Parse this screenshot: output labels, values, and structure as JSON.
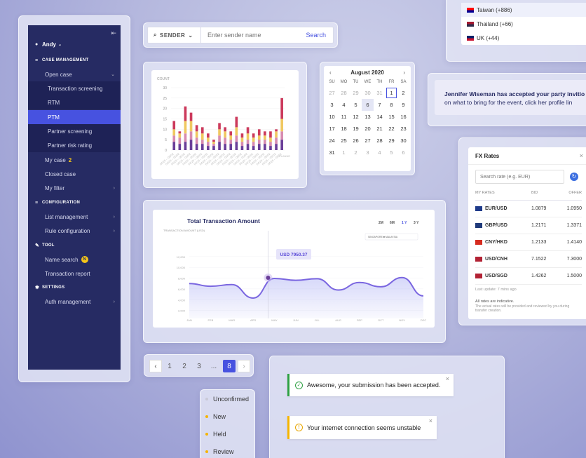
{
  "sidebar": {
    "user": "Andy",
    "sections": {
      "case": "CASE MANAGEMENT",
      "config": "CONFIGURATION",
      "tool": "TOOL",
      "settings": "SETTINGS"
    },
    "items": {
      "open_case": "Open case",
      "tx_screening": "Transaction screening",
      "rtm": "RTM",
      "ptm": "PTM",
      "partner_screening": "Partner screening",
      "partner_risk": "Partner risk rating",
      "my_case": "My case",
      "my_case_badge": "2",
      "closed_case": "Closed case",
      "my_filter": "My filter",
      "list_mgmt": "List management",
      "rule_config": "Rule configuration",
      "name_search": "Name search",
      "name_search_badge": "N",
      "tx_report": "Transaction report",
      "auth_mgmt": "Auth management"
    }
  },
  "search": {
    "scope": "SENDER",
    "placeholder": "Enter sender name",
    "button": "Search"
  },
  "bar_chart": {
    "ylabel": "COUNT",
    "yticks": [
      "30",
      "25",
      "20",
      "15",
      "10",
      "5",
      "0"
    ],
    "legend": "PLANNE"
  },
  "chart_data": [
    {
      "type": "bar",
      "title": "",
      "ylabel": "COUNT",
      "ylim": [
        0,
        30
      ],
      "categories": [
        "b1",
        "b2",
        "b3",
        "b4",
        "b5",
        "b6",
        "b7",
        "b8",
        "b9",
        "b10",
        "b11",
        "b12",
        "b13",
        "b14",
        "b15",
        "b16",
        "b17",
        "b18",
        "b19",
        "b20"
      ],
      "series": [
        {
          "values": [
            4,
            3,
            4,
            5,
            3,
            3,
            2,
            2,
            4,
            3,
            3,
            4,
            2,
            3,
            2,
            3,
            3,
            2,
            3,
            5
          ]
        },
        {
          "values": [
            3,
            3,
            4,
            4,
            3,
            2,
            2,
            1,
            3,
            3,
            2,
            3,
            2,
            2,
            2,
            2,
            2,
            2,
            3,
            4
          ]
        },
        {
          "values": [
            3,
            2,
            6,
            5,
            3,
            3,
            2,
            1,
            3,
            3,
            2,
            4,
            2,
            3,
            2,
            2,
            2,
            2,
            3,
            6
          ]
        },
        {
          "values": [
            4,
            1,
            7,
            4,
            3,
            3,
            2,
            1,
            3,
            2,
            2,
            5,
            2,
            3,
            2,
            3,
            2,
            3,
            1,
            10
          ]
        }
      ],
      "colors": [
        "#6a3e98",
        "#d88bb0",
        "#f0c860",
        "#cc3a5c"
      ]
    },
    {
      "type": "area",
      "title": "Total Transaction Amount",
      "ylabel": "TRANSACTION AMOUNT (USD)",
      "yticks": [
        "12,000",
        "10,000",
        "8,000",
        "6,000",
        "4,000",
        "2,000"
      ],
      "categories": [
        "JAN",
        "FEB",
        "MAR",
        "APR",
        "MAY",
        "JUN",
        "JUL",
        "AUG",
        "SEP",
        "OCT",
        "NOV",
        "DEC"
      ],
      "values": [
        7000,
        6500,
        6800,
        4300,
        7950,
        7600,
        7900,
        5800,
        7200,
        6400,
        8100,
        4700
      ],
      "tooltip": "USD 7950.37",
      "ranges": [
        "2M",
        "6M",
        "1 Y",
        "3 Y"
      ],
      "filter": "SINGAPORE ■ MALAYSIA"
    }
  ],
  "calendar": {
    "month": "August 2020",
    "days": [
      "SU",
      "MO",
      "TU",
      "WE",
      "TH",
      "FR",
      "SA"
    ],
    "weeks": [
      [
        "27",
        "28",
        "29",
        "30",
        "31",
        "1",
        "2"
      ],
      [
        "3",
        "4",
        "5",
        "6",
        "7",
        "8",
        "9"
      ],
      [
        "10",
        "11",
        "12",
        "13",
        "14",
        "15",
        "16"
      ],
      [
        "17",
        "18",
        "19",
        "20",
        "21",
        "22",
        "23"
      ],
      [
        "24",
        "25",
        "26",
        "27",
        "28",
        "29",
        "30"
      ],
      [
        "31",
        "1",
        "2",
        "3",
        "4",
        "5",
        "6"
      ]
    ]
  },
  "phone": {
    "items": [
      "Taiwan (+886)",
      "Thailand (+66)",
      "UK (+44)"
    ]
  },
  "notification": {
    "line1": "Jennifer Wiseman has accepted your party invitio",
    "line2": "on what to bring for the event, click her profile lin"
  },
  "fx": {
    "title": "FX Rates",
    "placeholder": "Search rate (e.g. EUR)",
    "headers": [
      "MY RATES",
      "BID",
      "OFFER"
    ],
    "rows": [
      {
        "pair": "EUR/USD",
        "bid": "1.0879",
        "offer": "1.0950",
        "c": "#1e3a8a"
      },
      {
        "pair": "GBP/USD",
        "bid": "1.2171",
        "offer": "1.3371",
        "c": "#1f3a7a"
      },
      {
        "pair": "CNY/HKD",
        "bid": "1.2133",
        "offer": "1.4140",
        "c": "#d62b1f"
      },
      {
        "pair": "USD/CNH",
        "bid": "7.1522",
        "offer": "7.3000",
        "c": "#b22234"
      },
      {
        "pair": "USD/SGD",
        "bid": "1.4262",
        "offer": "1.5000",
        "c": "#b22234"
      }
    ],
    "updated": "Last update: 7 mins ago",
    "note1": "All rates are indicative.",
    "note2": "The actual rates will be provided and reviewed by you during transfer creation."
  },
  "pagination": {
    "pages": [
      "1",
      "2",
      "3",
      "...",
      "8"
    ]
  },
  "statuses": [
    {
      "label": "Unconfirmed",
      "color": "#c9c9d6"
    },
    {
      "label": "New",
      "color": "#f5b400"
    },
    {
      "label": "Held",
      "color": "#f5b400"
    },
    {
      "label": "Review",
      "color": "#f5b400"
    }
  ],
  "toasts": {
    "success": "Awesome, your submission has been accepted.",
    "warning": "Your internet connection seems unstable"
  }
}
